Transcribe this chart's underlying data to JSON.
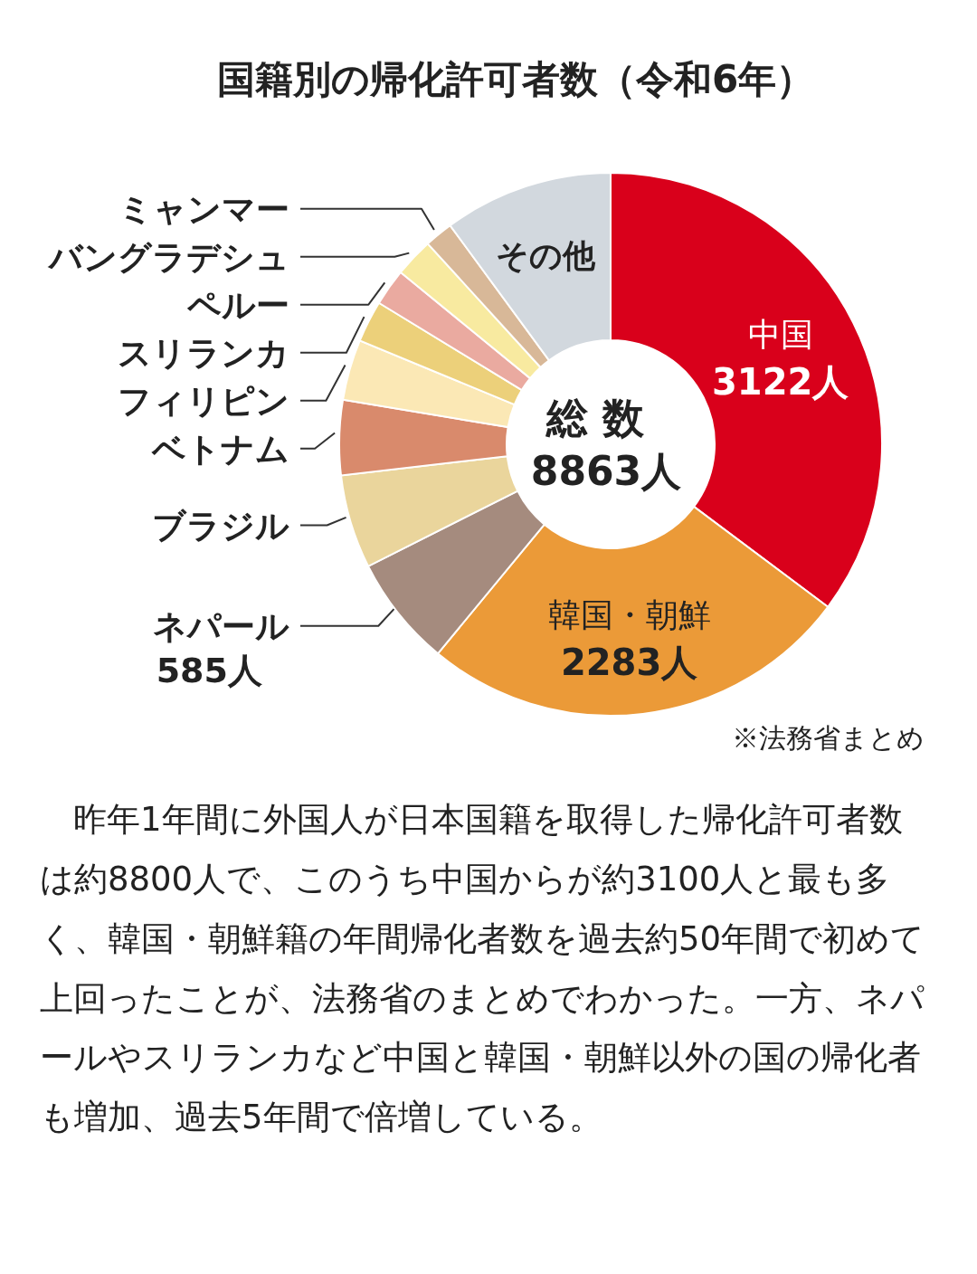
{
  "chart_data": {
    "type": "donut",
    "title": "国籍別の帰化許可者数（令和6年）",
    "categories": [
      "中国",
      "韓国・朝鮮",
      "ネパール",
      "ブラジル",
      "ベトナム",
      "フィリピン",
      "スリランカ",
      "ペルー",
      "バングラデシュ",
      "ミャンマー",
      "その他"
    ],
    "values": [
      3122,
      2283,
      585,
      495,
      395,
      320,
      220,
      195,
      205,
      150,
      893
    ],
    "colors": [
      "#d9001b",
      "#eb9a38",
      "#a58b7e",
      "#ead59c",
      "#d98a6c",
      "#fbe8b5",
      "#ecd07a",
      "#eaaaa0",
      "#f8eaa0",
      "#d8b898",
      "#d2d8de"
    ],
    "value_labels": [
      "3122人",
      "2283人",
      "585人",
      null,
      null,
      null,
      null,
      null,
      null,
      null,
      null
    ],
    "annotations": [
      "総 数",
      "8863人",
      "※法務省まとめ",
      "昨年1年間に外国人が日本国籍を取得した帰化許可者数は約8800人で、このうち中国からが約3100人と最も多く、韓国・朝鮮籍の年間帰化者数を過去約50年間で初めて上回ったことが、法務省のまとめでわかった。一方、ネパールやスリランカなど中国と韓国・朝鮮以外の国の帰化者も増加、過去5年間で倍増している。"
    ]
  }
}
